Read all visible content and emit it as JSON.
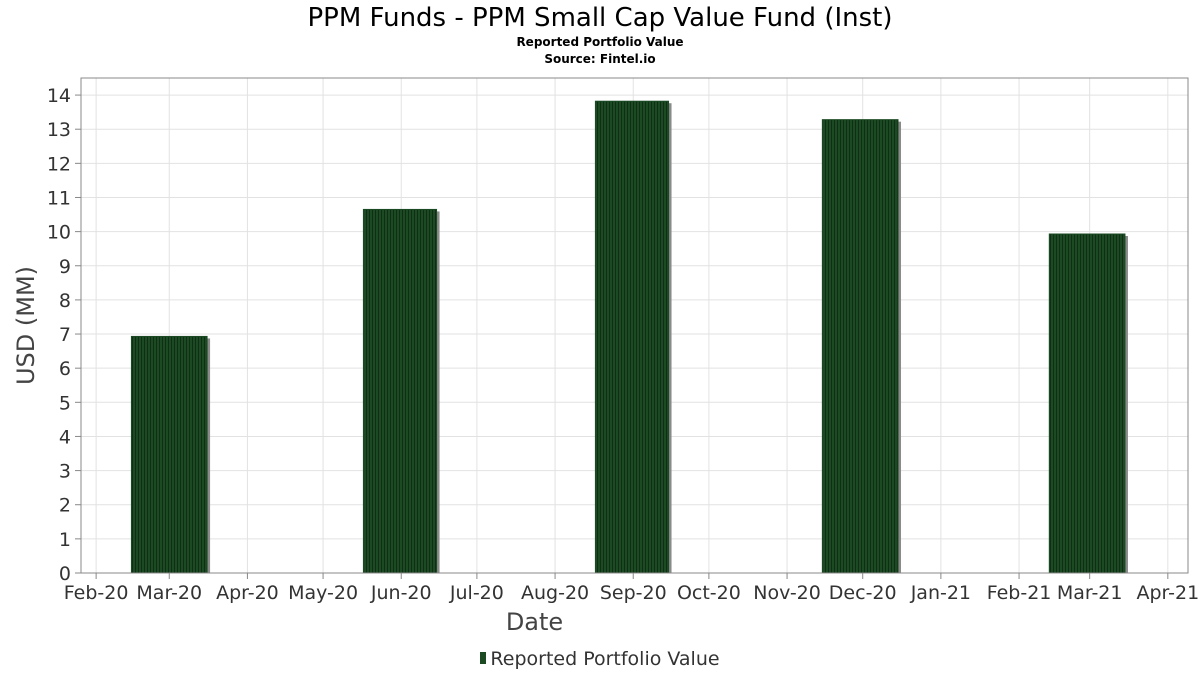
{
  "title": "PPM Funds - PPM Small Cap Value Fund (Inst)",
  "subtitle": "Reported Portfolio Value",
  "source": "Source: Fintel.io",
  "legend": {
    "label": "Reported Portfolio Value"
  },
  "colors": {
    "bar": "#1b4a23",
    "bar_stripe": "#0f2e15",
    "bar_shadow": "#8a8a8a",
    "grid": "#e2e2e2",
    "axis": "#888888"
  },
  "chart_data": {
    "type": "bar",
    "title": "PPM Funds - PPM Small Cap Value Fund (Inst)",
    "subtitle": "Reported Portfolio Value",
    "xlabel": "Date",
    "ylabel": "USD (MM)",
    "ylim": [
      0,
      14.5
    ],
    "yticks": [
      0,
      1,
      2,
      3,
      4,
      5,
      6,
      7,
      8,
      9,
      10,
      11,
      12,
      13,
      14
    ],
    "xlim": [
      "2020-01-26",
      "2021-04-09"
    ],
    "xticks": [
      {
        "date": "2020-02-01",
        "label": "Feb-20"
      },
      {
        "date": "2020-03-01",
        "label": "Mar-20"
      },
      {
        "date": "2020-04-01",
        "label": "Apr-20"
      },
      {
        "date": "2020-05-01",
        "label": "May-20"
      },
      {
        "date": "2020-06-01",
        "label": "Jun-20"
      },
      {
        "date": "2020-07-01",
        "label": "Jul-20"
      },
      {
        "date": "2020-08-01",
        "label": "Aug-20"
      },
      {
        "date": "2020-09-01",
        "label": "Sep-20"
      },
      {
        "date": "2020-10-01",
        "label": "Oct-20"
      },
      {
        "date": "2020-11-01",
        "label": "Nov-20"
      },
      {
        "date": "2020-12-01",
        "label": "Dec-20"
      },
      {
        "date": "2021-01-01",
        "label": "Jan-21"
      },
      {
        "date": "2021-02-01",
        "label": "Feb-21"
      },
      {
        "date": "2021-03-01",
        "label": "Mar-21"
      },
      {
        "date": "2021-04-01",
        "label": "Apr-21"
      }
    ],
    "series": [
      {
        "name": "Reported Portfolio Value",
        "bars": [
          {
            "start": "2020-02-15",
            "end": "2020-03-16",
            "value": 6.93
          },
          {
            "start": "2020-05-17",
            "end": "2020-06-15",
            "value": 10.65
          },
          {
            "start": "2020-08-17",
            "end": "2020-09-15",
            "value": 13.82
          },
          {
            "start": "2020-11-15",
            "end": "2020-12-15",
            "value": 13.28
          },
          {
            "start": "2021-02-13",
            "end": "2021-03-15",
            "value": 9.93
          }
        ]
      }
    ],
    "grid": true,
    "legend_position": "bottom"
  }
}
